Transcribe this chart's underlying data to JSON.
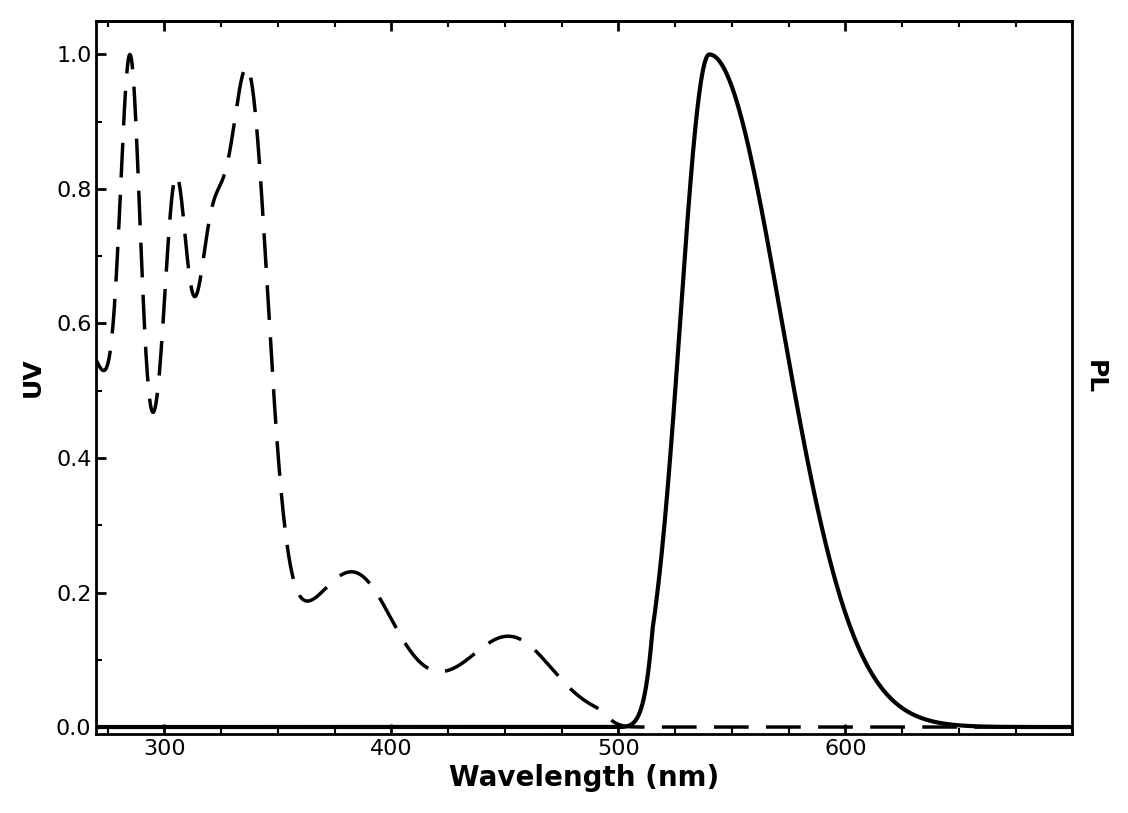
{
  "xlim": [
    270,
    700
  ],
  "ylim": [
    -0.01,
    1.05
  ],
  "xlabel": "Wavelength (nm)",
  "ylabel_left": "UV",
  "ylabel_right": "PL",
  "xticks": [
    300,
    400,
    500,
    600
  ],
  "yticks": [
    0.0,
    0.2,
    0.4,
    0.6,
    0.8,
    1.0
  ],
  "xlabel_fontsize": 20,
  "ylabel_fontsize": 18,
  "tick_fontsize": 16,
  "line_color": "#000000",
  "linewidth": 2.5,
  "background_color": "#ffffff"
}
